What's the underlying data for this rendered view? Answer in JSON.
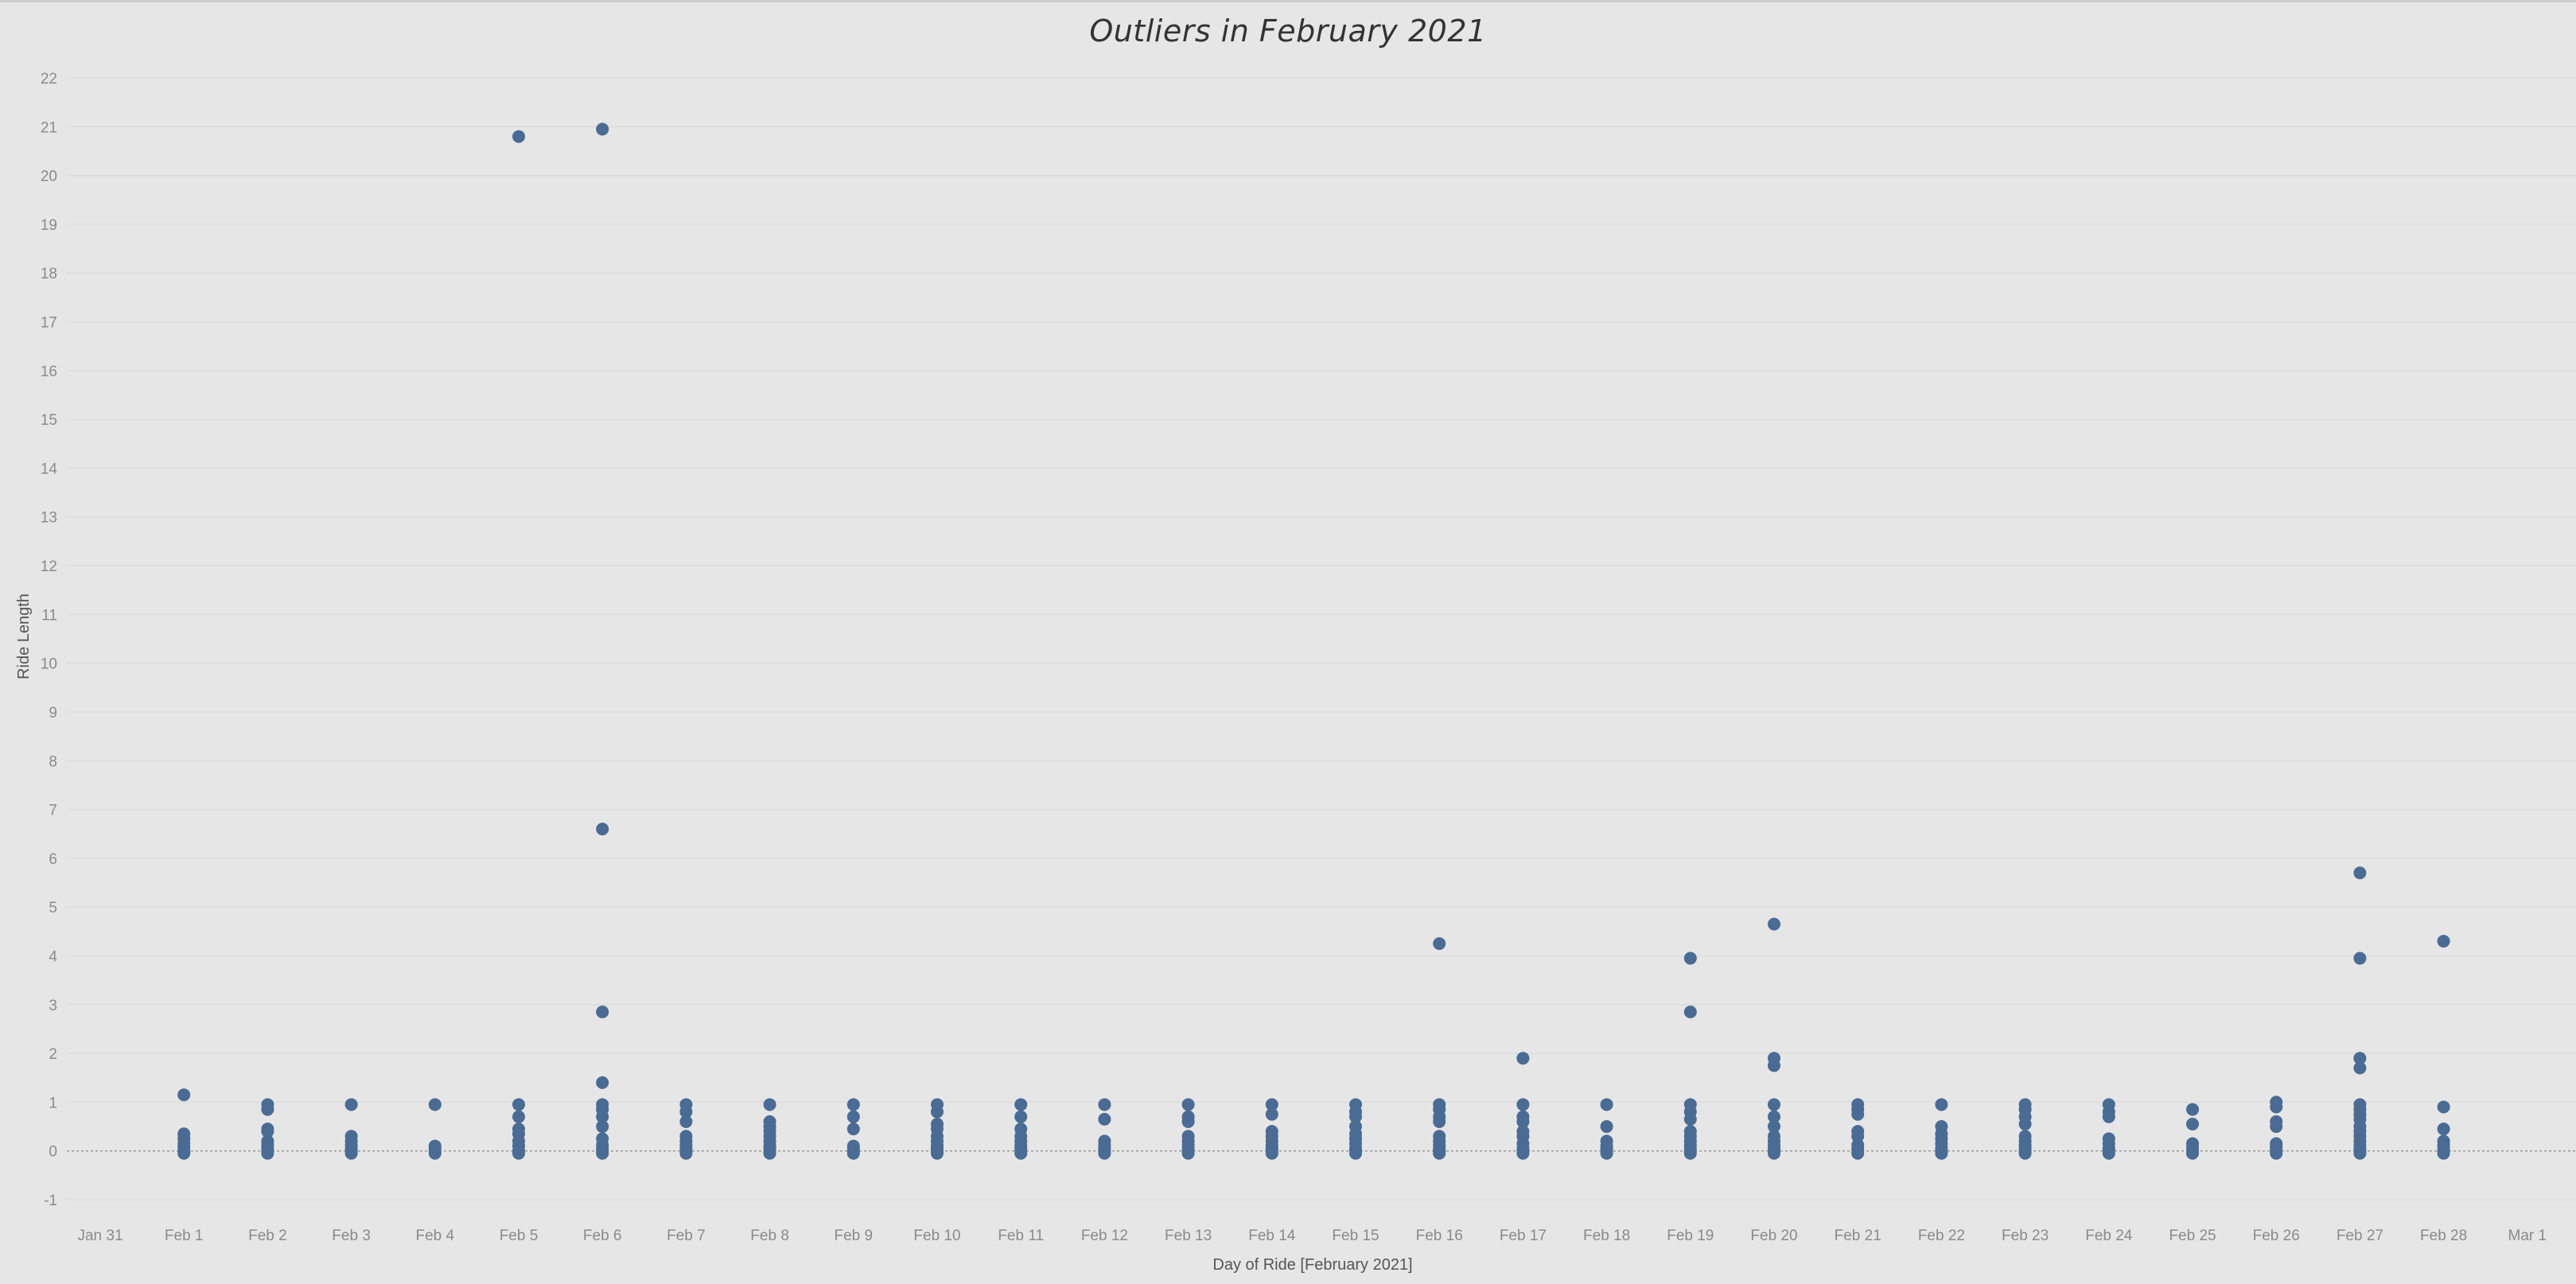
{
  "chart_data": {
    "type": "scatter",
    "title": "Outliers in February 2021",
    "xlabel": "Day of Ride [February 2021]",
    "ylabel": "Ride Length",
    "x_ticks": [
      "Jan 31",
      "Feb 1",
      "Feb 2",
      "Feb 3",
      "Feb 4",
      "Feb 5",
      "Feb 6",
      "Feb 7",
      "Feb 8",
      "Feb 9",
      "Feb 10",
      "Feb 11",
      "Feb 12",
      "Feb 13",
      "Feb 14",
      "Feb 15",
      "Feb 16",
      "Feb 17",
      "Feb 18",
      "Feb 19",
      "Feb 20",
      "Feb 21",
      "Feb 22",
      "Feb 23",
      "Feb 24",
      "Feb 25",
      "Feb 26",
      "Feb 27",
      "Feb 28",
      "Mar 1"
    ],
    "y_ticks": [
      "-1",
      "0",
      "1",
      "2",
      "3",
      "4",
      "5",
      "6",
      "7",
      "8",
      "9",
      "10",
      "11",
      "12",
      "13",
      "14",
      "15",
      "16",
      "17",
      "18",
      "19",
      "20",
      "21",
      "22"
    ],
    "ylim": [
      -1,
      22
    ],
    "grid": "horizontal",
    "marker_color": "#4a6b94",
    "series": [
      {
        "x": "Feb 1",
        "values": [
          1.15,
          0.35,
          0.25,
          0.15,
          0.08,
          0.0,
          -0.05
        ]
      },
      {
        "x": "Feb 2",
        "values": [
          0.95,
          0.85,
          0.45,
          0.4,
          0.2,
          0.12,
          0.05,
          0.0,
          -0.05
        ]
      },
      {
        "x": "Feb 3",
        "values": [
          0.95,
          0.3,
          0.2,
          0.12,
          0.05,
          0.0,
          -0.05
        ]
      },
      {
        "x": "Feb 4",
        "values": [
          0.95,
          0.1,
          0.05,
          0.0,
          -0.05
        ]
      },
      {
        "x": "Feb 5",
        "values": [
          20.8,
          0.95,
          0.7,
          0.45,
          0.35,
          0.2,
          0.1,
          0.0,
          -0.05
        ]
      },
      {
        "x": "Feb 6",
        "values": [
          20.95,
          6.6,
          2.85,
          1.4,
          0.95,
          0.85,
          0.7,
          0.5,
          0.25,
          0.12,
          0.05,
          0.0,
          -0.05
        ]
      },
      {
        "x": "Feb 7",
        "values": [
          0.95,
          0.8,
          0.6,
          0.3,
          0.2,
          0.12,
          0.05,
          0.0,
          -0.05
        ]
      },
      {
        "x": "Feb 8",
        "values": [
          0.95,
          0.6,
          0.5,
          0.4,
          0.3,
          0.2,
          0.1,
          0.05,
          0.0,
          -0.05
        ]
      },
      {
        "x": "Feb 9",
        "values": [
          0.95,
          0.7,
          0.45,
          0.1,
          0.05,
          0.0,
          -0.05
        ]
      },
      {
        "x": "Feb 10",
        "values": [
          0.95,
          0.8,
          0.55,
          0.45,
          0.3,
          0.2,
          0.1,
          0.05,
          0.0,
          -0.05
        ]
      },
      {
        "x": "Feb 11",
        "values": [
          0.95,
          0.7,
          0.45,
          0.3,
          0.2,
          0.1,
          0.05,
          0.0,
          -0.05
        ]
      },
      {
        "x": "Feb 12",
        "values": [
          0.95,
          0.65,
          0.2,
          0.12,
          0.05,
          0.0,
          -0.05
        ]
      },
      {
        "x": "Feb 13",
        "values": [
          0.95,
          0.7,
          0.6,
          0.3,
          0.2,
          0.12,
          0.05,
          0.0,
          -0.05
        ]
      },
      {
        "x": "Feb 14",
        "values": [
          0.95,
          0.75,
          0.4,
          0.3,
          0.2,
          0.1,
          0.05,
          0.0,
          -0.05
        ]
      },
      {
        "x": "Feb 15",
        "values": [
          0.95,
          0.8,
          0.7,
          0.5,
          0.35,
          0.25,
          0.15,
          0.05,
          0.0,
          -0.05
        ]
      },
      {
        "x": "Feb 16",
        "values": [
          4.25,
          0.95,
          0.85,
          0.7,
          0.6,
          0.3,
          0.2,
          0.12,
          0.05,
          0.0,
          -0.05
        ]
      },
      {
        "x": "Feb 17",
        "values": [
          1.9,
          0.95,
          0.7,
          0.6,
          0.4,
          0.3,
          0.15,
          0.05,
          0.0,
          -0.05
        ]
      },
      {
        "x": "Feb 18",
        "values": [
          0.95,
          0.5,
          0.2,
          0.1,
          0.05,
          0.0,
          -0.05
        ]
      },
      {
        "x": "Feb 19",
        "values": [
          3.95,
          2.85,
          0.95,
          0.8,
          0.65,
          0.4,
          0.3,
          0.2,
          0.12,
          0.05,
          0.0,
          -0.05
        ]
      },
      {
        "x": "Feb 20",
        "values": [
          4.65,
          1.9,
          1.75,
          0.95,
          0.7,
          0.5,
          0.3,
          0.2,
          0.12,
          0.05,
          0.0,
          -0.05
        ]
      },
      {
        "x": "Feb 21",
        "values": [
          0.95,
          0.85,
          0.75,
          0.4,
          0.3,
          0.12,
          0.05,
          0.0,
          -0.05
        ]
      },
      {
        "x": "Feb 22",
        "values": [
          0.95,
          0.5,
          0.35,
          0.25,
          0.15,
          0.05,
          0.0,
          -0.05
        ]
      },
      {
        "x": "Feb 23",
        "values": [
          0.95,
          0.85,
          0.7,
          0.55,
          0.3,
          0.2,
          0.12,
          0.05,
          0.0,
          -0.05
        ]
      },
      {
        "x": "Feb 24",
        "values": [
          0.95,
          0.8,
          0.7,
          0.25,
          0.15,
          0.05,
          0.0,
          -0.05
        ]
      },
      {
        "x": "Feb 25",
        "values": [
          0.85,
          0.55,
          0.15,
          0.08,
          0.0,
          -0.05
        ]
      },
      {
        "x": "Feb 26",
        "values": [
          1.0,
          0.9,
          0.6,
          0.5,
          0.15,
          0.1,
          0.05,
          0.0,
          -0.05
        ]
      },
      {
        "x": "Feb 27",
        "values": [
          5.7,
          3.95,
          1.9,
          1.7,
          0.95,
          0.85,
          0.75,
          0.65,
          0.5,
          0.4,
          0.3,
          0.2,
          0.12,
          0.05,
          0.0,
          -0.05
        ]
      },
      {
        "x": "Feb 28",
        "values": [
          4.3,
          0.9,
          0.45,
          0.2,
          0.12,
          0.05,
          0.0,
          -0.05
        ]
      }
    ]
  }
}
